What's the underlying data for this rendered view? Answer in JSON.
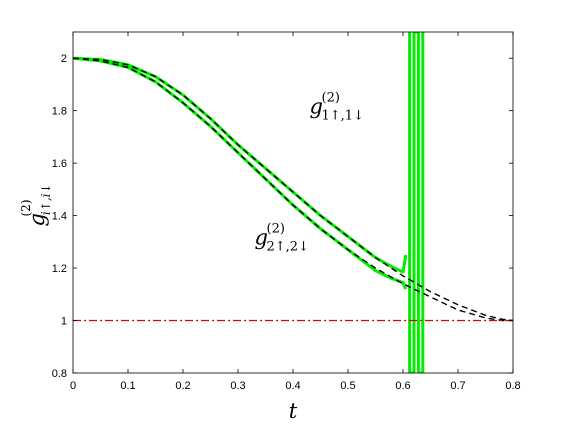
{
  "chart_data": {
    "type": "line",
    "xlabel": "t",
    "ylabel": {
      "base": "g",
      "sup": "(2)",
      "sub": "i↑,i↓"
    },
    "xlim": [
      0,
      0.8
    ],
    "ylim": [
      0.8,
      2.1
    ],
    "xticks": [
      0,
      0.1,
      0.2,
      0.3,
      0.4,
      0.5,
      0.6,
      0.7,
      0.8
    ],
    "yticks": [
      0.8,
      1,
      1.2,
      1.4,
      1.6,
      1.8,
      2
    ],
    "xtick_labels": [
      "0",
      "0.1",
      "0.2",
      "0.3",
      "0.4",
      "0.5",
      "0.6",
      "0.7",
      "0.8"
    ],
    "ytick_labels": [
      "0.8",
      "1",
      "1.2",
      "1.4",
      "1.6",
      "1.8",
      "2"
    ],
    "grid": false,
    "annotations": [
      {
        "base": "g",
        "sup": "(2)",
        "sub": "1↑,1↓",
        "x": 0.43,
        "y": 1.79
      },
      {
        "base": "g",
        "sup": "(2)",
        "sub": "2↑,2↓",
        "x": 0.33,
        "y": 1.29
      }
    ],
    "series": [
      {
        "color": "#00ee00",
        "style": "solid",
        "x": [
          0,
          0.05,
          0.1,
          0.15,
          0.2,
          0.25,
          0.3,
          0.35,
          0.4,
          0.45,
          0.5,
          0.55,
          0.58,
          0.6,
          0.605
        ],
        "y": [
          2.0,
          1.995,
          1.975,
          1.93,
          1.86,
          1.77,
          1.67,
          1.58,
          1.49,
          1.4,
          1.32,
          1.24,
          1.205,
          1.185,
          1.25
        ]
      },
      {
        "color": "#00ee00",
        "style": "solid",
        "x": [
          0,
          0.05,
          0.1,
          0.15,
          0.2,
          0.25,
          0.3,
          0.35,
          0.4,
          0.45,
          0.5,
          0.55,
          0.58,
          0.6,
          0.605
        ],
        "y": [
          2.0,
          1.99,
          1.965,
          1.91,
          1.83,
          1.74,
          1.64,
          1.54,
          1.44,
          1.35,
          1.27,
          1.19,
          1.16,
          1.145,
          1.12
        ]
      },
      {
        "color": "#00ee00",
        "style": "solid",
        "x": [
          0.612,
          0.612,
          0.62,
          0.62,
          0.628,
          0.628,
          0.636,
          0.636
        ],
        "y": [
          2.1,
          0.8,
          0.8,
          2.1,
          2.1,
          0.8,
          0.8,
          2.1
        ]
      },
      {
        "color": "#000000",
        "style": "dashed",
        "x": [
          0,
          0.05,
          0.1,
          0.15,
          0.2,
          0.25,
          0.3,
          0.35,
          0.4,
          0.45,
          0.5,
          0.55,
          0.6,
          0.65,
          0.7,
          0.75,
          0.78,
          0.8
        ],
        "y": [
          2.0,
          1.995,
          1.975,
          1.93,
          1.86,
          1.77,
          1.67,
          1.58,
          1.49,
          1.4,
          1.32,
          1.24,
          1.17,
          1.11,
          1.06,
          1.02,
          1.005,
          1.0
        ]
      },
      {
        "color": "#000000",
        "style": "dashed",
        "x": [
          0,
          0.05,
          0.1,
          0.15,
          0.2,
          0.25,
          0.3,
          0.35,
          0.4,
          0.45,
          0.5,
          0.55,
          0.6,
          0.65,
          0.7,
          0.75,
          0.78,
          0.8
        ],
        "y": [
          2.0,
          1.99,
          1.965,
          1.91,
          1.83,
          1.74,
          1.64,
          1.54,
          1.44,
          1.35,
          1.27,
          1.2,
          1.14,
          1.09,
          1.04,
          1.01,
          1.0,
          1.0
        ]
      },
      {
        "color": "#dd0000",
        "style": "dashdot",
        "x": [
          0,
          0.8
        ],
        "y": [
          1,
          1
        ]
      }
    ]
  }
}
